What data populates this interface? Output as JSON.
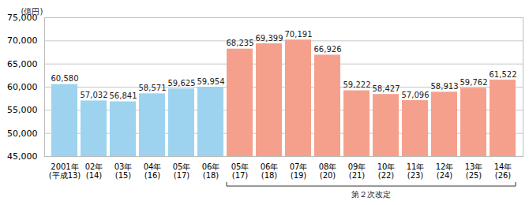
{
  "chart_data": {
    "type": "bar",
    "y_label": "(億円)",
    "categories": [
      "2001年\n(平成13)",
      "02年\n(14)",
      "03年\n(15)",
      "04年\n(16)",
      "05年\n(17)",
      "06年\n(18)",
      "05年\n(17)",
      "06年\n(18)",
      "07年\n(19)",
      "08年\n(20)",
      "09年\n(21)",
      "10年\n(22)",
      "11年\n(23)",
      "12年\n(24)",
      "13年\n(25)",
      "14年\n(26)"
    ],
    "values": [
      60580,
      57032,
      56841,
      58571,
      59625,
      59954,
      68235,
      69399,
      70191,
      66926,
      59222,
      58427,
      57096,
      58913,
      59762,
      61522
    ],
    "value_labels": [
      "60,580",
      "57,032",
      "56,841",
      "58,571",
      "59,625",
      "59,954",
      "68,235",
      "69,399",
      "70,191",
      "66,926",
      "59,222",
      "58,427",
      "57,096",
      "58,913",
      "59,762",
      "61,522"
    ],
    "colors": [
      "#9dd3ef",
      "#9dd3ef",
      "#9dd3ef",
      "#9dd3ef",
      "#9dd3ef",
      "#9dd3ef",
      "#f5a08c",
      "#f5a08c",
      "#f5a08c",
      "#f5a08c",
      "#f5a08c",
      "#f5a08c",
      "#f5a08c",
      "#f5a08c",
      "#f5a08c",
      "#f5a08c"
    ],
    "ylim": [
      45000,
      75000
    ],
    "yticks": [
      {
        "value": 45000,
        "label": "45,000"
      },
      {
        "value": 50000,
        "label": "50,000"
      },
      {
        "value": 55000,
        "label": "55,000"
      },
      {
        "value": 60000,
        "label": "60,000"
      },
      {
        "value": 65000,
        "label": "65,000"
      },
      {
        "value": 70000,
        "label": "70,000"
      },
      {
        "value": 75000,
        "label": "75,000"
      }
    ],
    "grid": true,
    "data_labels": true,
    "annotations": [
      {
        "text": "第２次改定"
      }
    ]
  }
}
